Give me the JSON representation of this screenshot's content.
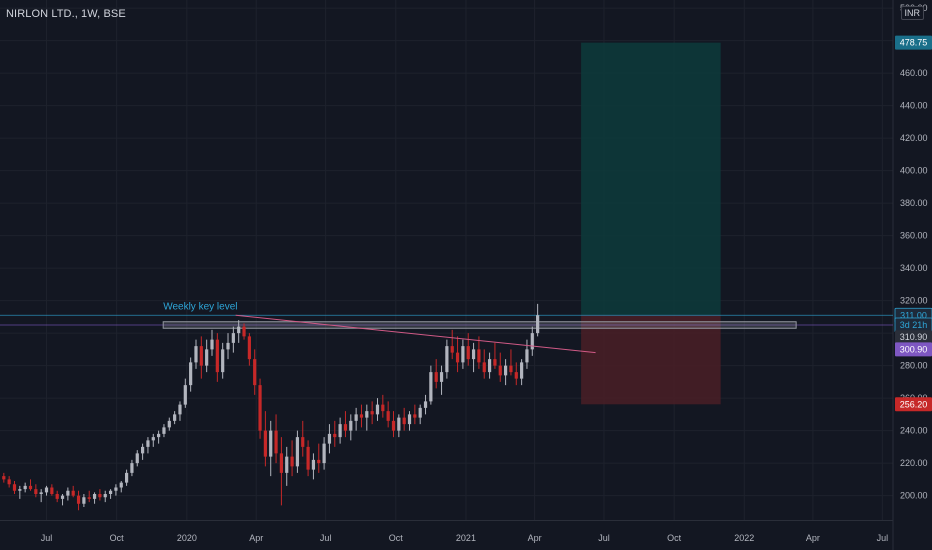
{
  "header": {
    "symbol": "NIRLON LTD., 1W, BSE",
    "currency": "INR"
  },
  "colors": {
    "background": "#131722",
    "grid": "#1e222d",
    "up_candle": "#b2b5be",
    "down_candle": "#c62828",
    "target_zone": "#0d3b3b",
    "stop_zone": "#4a1f26",
    "key_level_line": "#2ea6d8",
    "trendline": "#d05a86",
    "level_box": "#9598a1",
    "horizontal_line": "#7e57c2"
  },
  "chart_data": {
    "type": "candlestick",
    "title": "NIRLON LTD., 1W, BSE",
    "x_axis": {
      "start": "2019-05-01",
      "end": "2022-07-15",
      "tick_labels": [
        {
          "label": "Jul",
          "date": "2019-07-01"
        },
        {
          "label": "Oct",
          "date": "2019-10-01"
        },
        {
          "label": "2020",
          "date": "2020-01-01"
        },
        {
          "label": "Apr",
          "date": "2020-04-01"
        },
        {
          "label": "Jul",
          "date": "2020-07-01"
        },
        {
          "label": "Oct",
          "date": "2020-10-01"
        },
        {
          "label": "2021",
          "date": "2021-01-01"
        },
        {
          "label": "Apr",
          "date": "2021-04-01"
        },
        {
          "label": "Jul",
          "date": "2021-07-01"
        },
        {
          "label": "Oct",
          "date": "2021-10-01"
        },
        {
          "label": "2022",
          "date": "2022-01-01"
        },
        {
          "label": "Apr",
          "date": "2022-04-01"
        },
        {
          "label": "Jul",
          "date": "2022-07-01"
        }
      ]
    },
    "y_axis": {
      "min": 185,
      "max": 505,
      "ticks": [
        200,
        220,
        240,
        260,
        280,
        300,
        320,
        340,
        360,
        380,
        400,
        420,
        440,
        460,
        480,
        500
      ],
      "tick_labels": [
        "200.00",
        "220.00",
        "240.00",
        "260.00",
        "280.00",
        "300.00",
        "320.00",
        "340.00",
        "360.00",
        "380.00",
        "400.00",
        "420.00",
        "440.00",
        "460.00",
        "480.00",
        "500.00"
      ]
    },
    "candles_per_week": [
      [
        212,
        214,
        208,
        210
      ],
      [
        210,
        212,
        205,
        207
      ],
      [
        207,
        209,
        201,
        203
      ],
      [
        203,
        206,
        198,
        204
      ],
      [
        204,
        208,
        202,
        206
      ],
      [
        206,
        210,
        203,
        204
      ],
      [
        204,
        207,
        199,
        201
      ],
      [
        201,
        204,
        196,
        202
      ],
      [
        202,
        206,
        200,
        205
      ],
      [
        205,
        207,
        200,
        201
      ],
      [
        201,
        203,
        196,
        198
      ],
      [
        198,
        201,
        194,
        200
      ],
      [
        200,
        205,
        197,
        203
      ],
      [
        203,
        206,
        199,
        200
      ],
      [
        200,
        203,
        191,
        195
      ],
      [
        195,
        201,
        193,
        199
      ],
      [
        199,
        203,
        196,
        198
      ],
      [
        198,
        202,
        195,
        201
      ],
      [
        201,
        204,
        197,
        199
      ],
      [
        199,
        203,
        196,
        201
      ],
      [
        201,
        204,
        198,
        203
      ],
      [
        203,
        207,
        200,
        205
      ],
      [
        205,
        209,
        202,
        208
      ],
      [
        208,
        216,
        206,
        214
      ],
      [
        214,
        222,
        212,
        220
      ],
      [
        220,
        228,
        218,
        226
      ],
      [
        226,
        232,
        222,
        230
      ],
      [
        230,
        236,
        226,
        234
      ],
      [
        234,
        238,
        230,
        236
      ],
      [
        236,
        240,
        232,
        238
      ],
      [
        238,
        244,
        236,
        242
      ],
      [
        242,
        248,
        240,
        246
      ],
      [
        246,
        252,
        244,
        250
      ],
      [
        250,
        258,
        246,
        256
      ],
      [
        256,
        272,
        254,
        268
      ],
      [
        268,
        285,
        264,
        282
      ],
      [
        282,
        296,
        278,
        292
      ],
      [
        292,
        298,
        272,
        280
      ],
      [
        280,
        296,
        276,
        290
      ],
      [
        290,
        302,
        286,
        296
      ],
      [
        296,
        300,
        270,
        276
      ],
      [
        276,
        294,
        272,
        290
      ],
      [
        290,
        300,
        284,
        294
      ],
      [
        294,
        304,
        288,
        300
      ],
      [
        300,
        308,
        294,
        304
      ],
      [
        304,
        306,
        296,
        298
      ],
      [
        298,
        300,
        280,
        284
      ],
      [
        284,
        290,
        262,
        268
      ],
      [
        268,
        272,
        235,
        240
      ],
      [
        240,
        252,
        218,
        224
      ],
      [
        224,
        246,
        212,
        240
      ],
      [
        240,
        250,
        220,
        226
      ],
      [
        226,
        236,
        194,
        214
      ],
      [
        214,
        230,
        206,
        224
      ],
      [
        224,
        234,
        212,
        218
      ],
      [
        218,
        240,
        214,
        236
      ],
      [
        236,
        246,
        224,
        230
      ],
      [
        230,
        234,
        212,
        216
      ],
      [
        216,
        226,
        210,
        222
      ],
      [
        222,
        232,
        214,
        220
      ],
      [
        220,
        236,
        216,
        232
      ],
      [
        232,
        244,
        226,
        238
      ],
      [
        238,
        246,
        230,
        236
      ],
      [
        236,
        248,
        232,
        244
      ],
      [
        244,
        252,
        236,
        240
      ],
      [
        240,
        250,
        234,
        246
      ],
      [
        246,
        254,
        240,
        250
      ],
      [
        250,
        256,
        242,
        248
      ],
      [
        248,
        256,
        240,
        252
      ],
      [
        252,
        258,
        244,
        250
      ],
      [
        250,
        260,
        246,
        256
      ],
      [
        256,
        262,
        248,
        252
      ],
      [
        252,
        258,
        242,
        246
      ],
      [
        246,
        252,
        236,
        240
      ],
      [
        240,
        250,
        236,
        248
      ],
      [
        248,
        254,
        240,
        244
      ],
      [
        244,
        252,
        240,
        250
      ],
      [
        250,
        256,
        244,
        248
      ],
      [
        248,
        256,
        244,
        254
      ],
      [
        254,
        262,
        250,
        258
      ],
      [
        258,
        280,
        256,
        276
      ],
      [
        276,
        284,
        266,
        270
      ],
      [
        270,
        280,
        262,
        276
      ],
      [
        276,
        296,
        272,
        292
      ],
      [
        292,
        302,
        284,
        288
      ],
      [
        288,
        298,
        276,
        282
      ],
      [
        282,
        296,
        278,
        292
      ],
      [
        292,
        300,
        280,
        284
      ],
      [
        284,
        294,
        276,
        290
      ],
      [
        290,
        298,
        278,
        282
      ],
      [
        282,
        290,
        272,
        276
      ],
      [
        276,
        288,
        272,
        284
      ],
      [
        284,
        294,
        278,
        280
      ],
      [
        280,
        288,
        270,
        274
      ],
      [
        274,
        284,
        268,
        280
      ],
      [
        280,
        290,
        274,
        276
      ],
      [
        276,
        282,
        268,
        272
      ],
      [
        272,
        284,
        268,
        282
      ],
      [
        282,
        296,
        278,
        290
      ],
      [
        290,
        304,
        286,
        300
      ],
      [
        300,
        318,
        298,
        311
      ]
    ],
    "candles_start_date": "2019-05-06",
    "annotations": [
      {
        "type": "text",
        "label": "Weekly key level",
        "date": "2019-12-01",
        "price": 312
      },
      {
        "type": "trendline",
        "from": {
          "date": "2020-03-05",
          "price": 311
        },
        "to": {
          "date": "2021-06-20",
          "price": 288
        }
      },
      {
        "type": "zone_box",
        "from_date": "2019-12-01",
        "to_date": "2022-03-10",
        "price_top": 307,
        "price_bottom": 303
      },
      {
        "type": "horizontal_line",
        "price": 311.0
      },
      {
        "type": "horizontal_line",
        "price": 305.0
      },
      {
        "type": "target_zone",
        "from_date": "2021-06-01",
        "to_date": "2021-12-01",
        "price_top": 478.75,
        "price_bottom": 310.9
      },
      {
        "type": "stop_zone",
        "from_date": "2021-06-01",
        "to_date": "2021-12-01",
        "price_top": 310.9,
        "price_bottom": 256.2
      }
    ],
    "price_tags": [
      {
        "label": "478.75",
        "price": 478.75,
        "bg": "#1a6f8a",
        "fg": "#ffffff"
      },
      {
        "label": "311.00",
        "price": 311.0,
        "bg": "#1e2a3a",
        "fg": "#2ea6d8",
        "bordered": true
      },
      {
        "label": "3d 21h",
        "price": 305.0,
        "bg": "#1e2a3a",
        "fg": "#2ea6d8",
        "bordered": true
      },
      {
        "label": "310.90",
        "price": 297.5,
        "bg": "#2a2e39",
        "fg": "#d1d4dc"
      },
      {
        "label": "300.90",
        "price": 290.0,
        "bg": "#7e57c2",
        "fg": "#ffffff"
      },
      {
        "label": "256.20",
        "price": 256.2,
        "bg": "#c62828",
        "fg": "#ffffff"
      }
    ]
  }
}
